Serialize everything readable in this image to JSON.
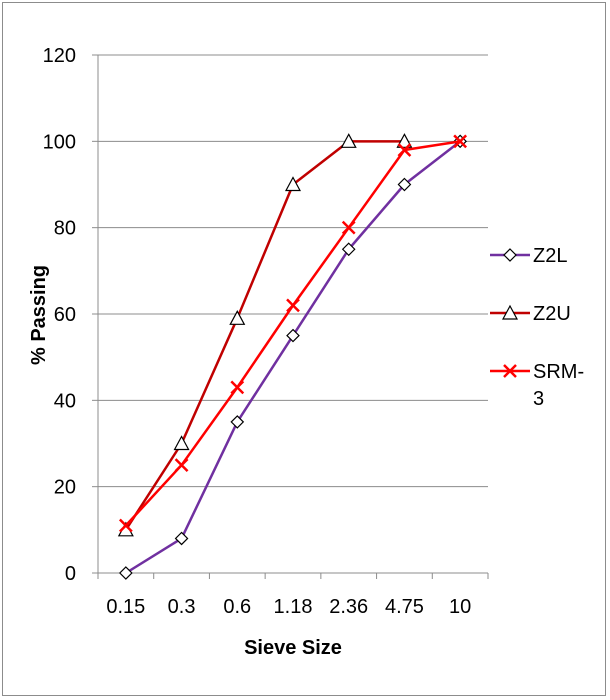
{
  "chart_data": {
    "type": "line",
    "title": "",
    "xlabel": "Sieve Size",
    "ylabel": "% Passing",
    "categories": [
      "0.15",
      "0.3",
      "0.6",
      "1.18",
      "2.36",
      "4.75",
      "10"
    ],
    "ylim": [
      0,
      120
    ],
    "yticks": [
      "0",
      "20",
      "40",
      "60",
      "80",
      "100",
      "120"
    ],
    "grid": "horizontal",
    "legend_position": "right",
    "series": [
      {
        "name": "Z2L",
        "values": [
          0,
          8,
          35,
          55,
          75,
          90,
          100
        ],
        "color": "#7030a0",
        "marker": "diamond"
      },
      {
        "name": "Z2U",
        "values": [
          10,
          30,
          59,
          90,
          100,
          100,
          null
        ],
        "color": "#c00000",
        "marker": "triangle"
      },
      {
        "name": "SRM-3",
        "values": [
          11,
          25,
          43,
          62,
          80,
          98,
          100
        ],
        "color": "#ff0000",
        "marker": "x"
      }
    ]
  },
  "legend": {
    "items": [
      {
        "line1": "Z2L",
        "line2": ""
      },
      {
        "line1": "Z2U",
        "line2": ""
      },
      {
        "line1": "SRM-",
        "line2": "3"
      }
    ]
  }
}
